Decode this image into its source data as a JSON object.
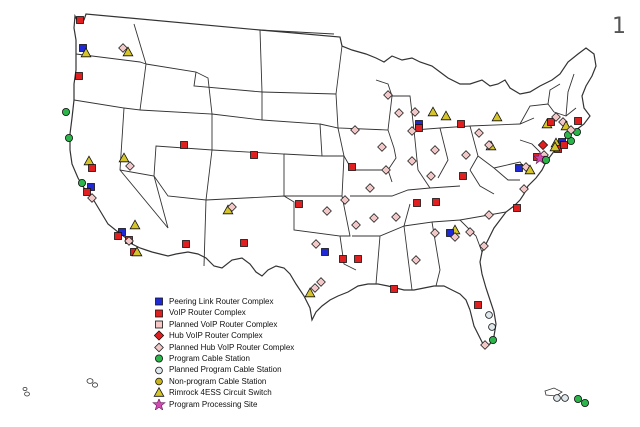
{
  "page_number": "1",
  "colors": {
    "peering": "#1f2ad6",
    "voip": "#e02020",
    "planned_voip": "#f6c7c7",
    "hub_voip": "#e02020",
    "planned_hub": "#f2c8c8",
    "cable": "#2bb54a",
    "planned_cable": "#dfe8ec",
    "nonprog_cable": "#c8b41a",
    "rimrock": "#d6c52a",
    "program_site": "#d04ab2",
    "outline": "#222222",
    "state_line": "#333333"
  },
  "legend": [
    {
      "label": "Peering Link Router Complex",
      "symbol": "peering"
    },
    {
      "label": "VoIP Router Complex",
      "symbol": "voip"
    },
    {
      "label": "Planned VoIP Router Complex",
      "symbol": "planned_voip"
    },
    {
      "label": "Hub VoIP Router Complex",
      "symbol": "hub_voip"
    },
    {
      "label": "Planned Hub VoIP Router Complex",
      "symbol": "planned_hub"
    },
    {
      "label": "Program Cable Station",
      "symbol": "cable"
    },
    {
      "label": "Planned Program Cable Station",
      "symbol": "planned_cable"
    },
    {
      "label": "Non-program Cable Station",
      "symbol": "nonprog_cable"
    },
    {
      "label": "Rimrock 4ESS Circuit Switch",
      "symbol": "rimrock"
    },
    {
      "label": "Program Processing Site",
      "symbol": "program_site"
    }
  ]
}
